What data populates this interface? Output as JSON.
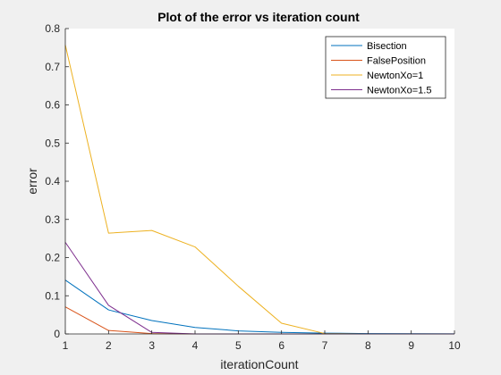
{
  "chart_data": {
    "type": "line",
    "title": "Plot of the error vs iteration count",
    "xlabel": "iterationCount",
    "ylabel": "error",
    "xlim": [
      1,
      10
    ],
    "ylim": [
      0,
      0.8
    ],
    "xticks": [
      1,
      2,
      3,
      4,
      5,
      6,
      7,
      8,
      9,
      10
    ],
    "yticks": [
      0,
      0.1,
      0.2,
      0.3,
      0.4,
      0.5,
      0.6,
      0.7,
      0.8
    ],
    "ytick_labels": [
      "0",
      "0.1",
      "0.2",
      "0.3",
      "0.4",
      "0.5",
      "0.6",
      "0.7",
      "0.8"
    ],
    "grid": false,
    "legend_position": "top-right",
    "series": [
      {
        "name": "Bisection",
        "color": "#0072bd",
        "x": [
          1,
          2,
          3,
          4,
          5,
          6,
          7,
          8,
          9,
          10
        ],
        "y": [
          0.141,
          0.063,
          0.035,
          0.017,
          0.008,
          0.004,
          0.002,
          0.001,
          0.0005,
          0.0002
        ]
      },
      {
        "name": "FalsePosition",
        "color": "#d95319",
        "x": [
          1,
          2,
          3,
          4,
          5,
          6,
          7,
          8,
          9,
          10
        ],
        "y": [
          0.071,
          0.009,
          0.001,
          0.0001,
          0,
          0,
          0,
          0,
          0,
          0
        ]
      },
      {
        "name": "NewtonXo=1",
        "color": "#edb120",
        "x": [
          1,
          2,
          3,
          4,
          5,
          6,
          7,
          8,
          9,
          10
        ],
        "y": [
          0.757,
          0.264,
          0.271,
          0.228,
          0.125,
          0.028,
          0.001,
          0,
          0,
          0
        ]
      },
      {
        "name": "NewtonXo=1.5",
        "color": "#7e2f8e",
        "x": [
          1,
          2,
          3,
          4,
          5,
          6,
          7,
          8,
          9,
          10
        ],
        "y": [
          0.24,
          0.075,
          0.004,
          0,
          0,
          0,
          0,
          0,
          0,
          0
        ]
      }
    ]
  }
}
